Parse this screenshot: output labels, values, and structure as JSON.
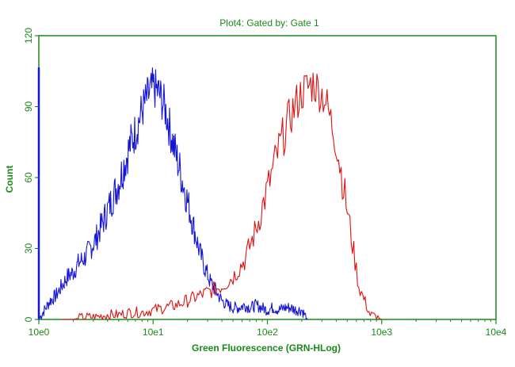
{
  "colors": {
    "text": "#1a8a1a",
    "axis": "#1a8a1a",
    "series_blue": "#1515d6",
    "series_red": "#e01010"
  },
  "chart_data": {
    "type": "line",
    "title": "Plot4:  Gated by: Gate 1",
    "xlabel": "Green Fluorescence (GRN-HLog)",
    "ylabel": "Count",
    "x_scale": "log",
    "xlim": [
      1,
      10000
    ],
    "ylim": [
      0,
      120
    ],
    "x_ticks": [
      {
        "value": 1,
        "label": "10e0"
      },
      {
        "value": 10,
        "label": "10e1"
      },
      {
        "value": 100,
        "label": "10e2"
      },
      {
        "value": 1000,
        "label": "10e3"
      },
      {
        "value": 10000,
        "label": "10e4"
      }
    ],
    "y_ticks": [
      {
        "value": 0,
        "label": "0"
      },
      {
        "value": 30,
        "label": "30"
      },
      {
        "value": 60,
        "label": "60"
      },
      {
        "value": 90,
        "label": "90"
      },
      {
        "value": 120,
        "label": "120"
      }
    ],
    "grid": false,
    "series": [
      {
        "color": "#1515d6",
        "x": [
          1.0,
          1.12,
          1.26,
          1.41,
          1.58,
          1.78,
          2.0,
          2.24,
          2.51,
          2.82,
          3.16,
          3.55,
          3.98,
          4.47,
          5.01,
          5.62,
          6.31,
          7.08,
          7.94,
          8.91,
          10.0,
          11.2,
          12.6,
          14.1,
          15.8,
          17.8,
          20.0,
          22.4,
          25.1,
          28.2,
          31.6,
          35.5,
          39.8,
          44.7,
          50.1,
          56.2,
          63.1,
          70.8,
          79.4,
          89.1,
          100.0,
          112.2,
          125.9,
          141.3,
          158.5,
          177.8,
          199.5,
          223.9
        ],
        "y": [
          0,
          4,
          8,
          10,
          14,
          18,
          20,
          24,
          26,
          30,
          34,
          40,
          46,
          52,
          58,
          66,
          74,
          80,
          88,
          94,
          98,
          96,
          90,
          80,
          70,
          60,
          50,
          40,
          30,
          22,
          16,
          12,
          8,
          6,
          5,
          5,
          6,
          5,
          6,
          5,
          4,
          5,
          4,
          5,
          5,
          4,
          4,
          0
        ]
      },
      {
        "color": "#e01010",
        "x": [
          1.58,
          2.0,
          2.51,
          3.16,
          3.98,
          5.01,
          6.31,
          7.94,
          10.0,
          12.6,
          15.8,
          20.0,
          25.1,
          31.6,
          39.8,
          50.1,
          63.1,
          79.4,
          100.0,
          125.9,
          158.5,
          199.5,
          251.2,
          316.2,
          398.1,
          501.2,
          631.0,
          794.3,
          1000.0
        ],
        "y": [
          0,
          0,
          1,
          1,
          2,
          2,
          3,
          3,
          4,
          5,
          6,
          8,
          10,
          12,
          14,
          18,
          25,
          38,
          55,
          72,
          86,
          96,
          100,
          94,
          76,
          46,
          14,
          2,
          0
        ]
      }
    ]
  }
}
